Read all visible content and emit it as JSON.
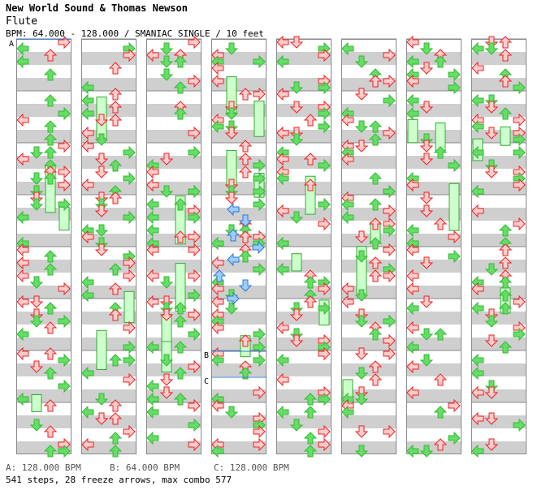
{
  "header": {
    "artist": "New World Sound & Thomas Newson",
    "title": "Flute",
    "meta": "BPM: 64.000 - 128.000 / SMANIAC SINGLE / 10 feet"
  },
  "footer": {
    "bpm_a": "A: 128.000 BPM",
    "bpm_b": "B: 64.000 BPM",
    "bpm_c": "C: 128.000 BPM",
    "stats": "541 steps, 28 freeze arrows, max combo 577"
  },
  "colors": {
    "quarter": "#e22",
    "eighth": "#3b3",
    "sixteenth": "#37c",
    "freeze_fill": "#cfc",
    "band": "#cfcfcf"
  },
  "chart_data": {
    "type": "step-chart",
    "columns": 8,
    "measures_per_column": 8,
    "bpm_markers": [
      {
        "label": "A",
        "bpm": 128.0
      },
      {
        "label": "B",
        "bpm": 64.0
      },
      {
        "label": "C",
        "bpm": 128.0
      }
    ],
    "steps": 541,
    "freeze_arrows": 28,
    "max_combo": 577
  }
}
